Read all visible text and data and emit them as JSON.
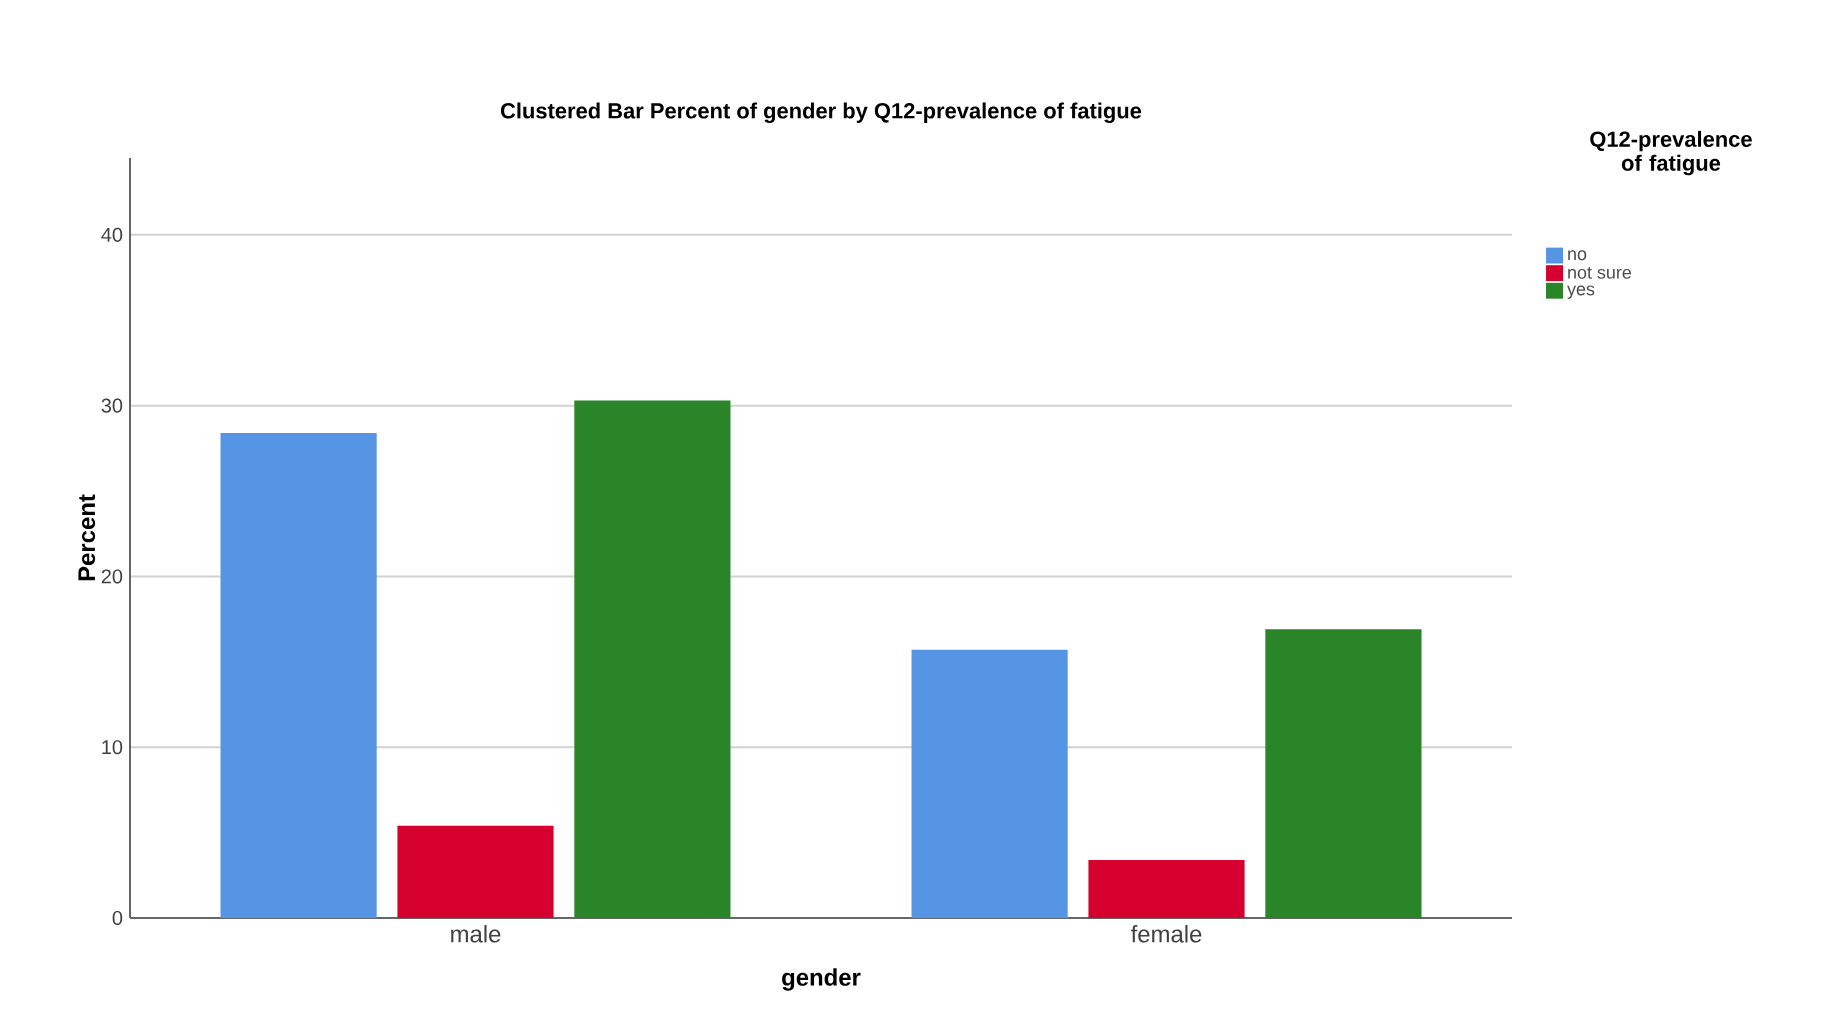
{
  "chart_data": {
    "type": "bar",
    "title": "Clustered Bar Percent of gender by Q12-prevalence of fatigue",
    "xlabel": "gender",
    "ylabel": "Percent",
    "legend_title": "Q12-prevalence of fatigue",
    "categories": [
      "male",
      "female"
    ],
    "series": [
      {
        "name": "no",
        "color": "#5595e3",
        "values": [
          28.4,
          15.7
        ]
      },
      {
        "name": "not sure",
        "color": "#d6002f",
        "values": [
          5.4,
          3.4
        ]
      },
      {
        "name": "yes",
        "color": "#2a8428",
        "values": [
          30.3,
          16.9
        ]
      }
    ],
    "ylim": [
      0,
      44.5
    ],
    "yticks": [
      0,
      10,
      20,
      30,
      40
    ],
    "grid": "y",
    "legend": "top right"
  }
}
